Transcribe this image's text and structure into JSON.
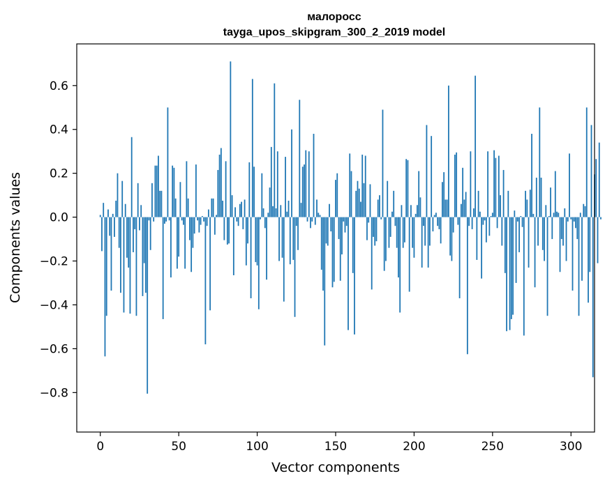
{
  "chart_data": {
    "type": "bar",
    "title": "малоросс",
    "subtitle": "tayga_upos_skipgram_300_2_2019 model",
    "xlabel": "Vector components",
    "ylabel": "Components values",
    "xlim": [
      -15,
      315
    ],
    "ylim": [
      -0.98,
      0.79
    ],
    "xticks": [
      0,
      50,
      100,
      150,
      200,
      250,
      300
    ],
    "yticks": [
      -0.8,
      -0.6,
      -0.4,
      -0.2,
      0.0,
      0.2,
      0.4,
      0.6
    ],
    "ytick_labels": [
      "−0.8",
      "−0.6",
      "−0.4",
      "−0.2",
      "0.0",
      "0.2",
      "0.4",
      "0.6"
    ],
    "grid": false,
    "bar_color": "#1f77b4",
    "values": [
      0.01,
      -0.155,
      0.065,
      -0.635,
      -0.45,
      0.035,
      -0.085,
      -0.335,
      0.015,
      -0.09,
      0.075,
      0.2,
      -0.14,
      -0.345,
      0.165,
      -0.435,
      0.06,
      -0.185,
      -0.23,
      -0.44,
      0.365,
      -0.16,
      -0.055,
      -0.45,
      0.155,
      -0.06,
      0.055,
      -0.36,
      -0.21,
      -0.345,
      -0.805,
      -0.015,
      -0.15,
      0.155,
      -0.02,
      0.235,
      0.235,
      0.28,
      0.12,
      0.12,
      -0.465,
      -0.03,
      -0.02,
      0.5,
      -0.015,
      -0.275,
      0.235,
      0.225,
      0.085,
      -0.235,
      -0.18,
      0.16,
      -0.015,
      -0.035,
      -0.235,
      0.255,
      0.085,
      -0.105,
      -0.25,
      -0.14,
      -0.075,
      0.24,
      -0.015,
      -0.07,
      -0.035,
      0.005,
      -0.02,
      -0.58,
      -0.04,
      0.035,
      -0.425,
      0.085,
      0.085,
      -0.08,
      0.01,
      0.215,
      0.285,
      0.315,
      0.075,
      -0.105,
      0.255,
      -0.125,
      -0.12,
      0.71,
      0.1,
      -0.265,
      0.045,
      -0.02,
      -0.04,
      0.06,
      0.07,
      -0.055,
      0.08,
      -0.22,
      -0.12,
      0.25,
      -0.37,
      0.63,
      0.23,
      -0.205,
      -0.22,
      -0.42,
      -0.01,
      0.2,
      0.04,
      -0.05,
      -0.285,
      0.02,
      0.135,
      0.32,
      0.05,
      0.61,
      0.04,
      0.3,
      -0.2,
      0.055,
      -0.185,
      -0.385,
      0.275,
      0.025,
      0.075,
      -0.215,
      0.4,
      -0.195,
      -0.455,
      -0.04,
      -0.15,
      0.535,
      0.065,
      0.23,
      0.24,
      0.305,
      -0.02,
      0.3,
      -0.05,
      -0.02,
      0.38,
      -0.035,
      0.08,
      0.02,
      0.01,
      -0.24,
      -0.335,
      -0.585,
      -0.12,
      -0.13,
      0.06,
      -0.065,
      -0.32,
      -0.295,
      0.17,
      0.2,
      -0.1,
      -0.29,
      -0.17,
      -0.02,
      -0.07,
      -0.04,
      -0.515,
      0.29,
      0.21,
      -0.255,
      -0.535,
      0.12,
      0.165,
      0.13,
      0.07,
      0.285,
      0.155,
      0.28,
      -0.105,
      -0.025,
      0.15,
      -0.33,
      -0.09,
      -0.13,
      -0.11,
      0.08,
      0.1,
      -0.01,
      0.49,
      -0.245,
      -0.2,
      0.165,
      -0.14,
      -0.09,
      0.025,
      0.12,
      -0.04,
      -0.14,
      -0.275,
      -0.435,
      0.055,
      -0.14,
      -0.115,
      0.265,
      0.26,
      -0.34,
      0.055,
      -0.14,
      -0.185,
      0.015,
      0.055,
      0.21,
      0.09,
      -0.23,
      -0.04,
      -0.13,
      0.42,
      -0.23,
      -0.13,
      0.37,
      -0.065,
      0.01,
      0.02,
      -0.04,
      -0.055,
      -0.12,
      0.16,
      0.205,
      0.08,
      0.08,
      0.6,
      -0.175,
      -0.2,
      -0.07,
      0.285,
      0.295,
      -0.035,
      -0.37,
      0.06,
      0.225,
      0.08,
      0.115,
      -0.625,
      -0.04,
      0.3,
      -0.055,
      0.04,
      0.645,
      -0.195,
      0.12,
      0.025,
      -0.28,
      -0.035,
      -0.015,
      -0.115,
      0.3,
      -0.085,
      0.005,
      0.02,
      0.305,
      0.27,
      -0.05,
      0.28,
      0.1,
      -0.13,
      0.215,
      -0.255,
      -0.52,
      0.12,
      -0.515,
      -0.465,
      -0.445,
      0.03,
      -0.3,
      -0.02,
      -0.16,
      0.005,
      -0.045,
      -0.54,
      0.12,
      0.08,
      -0.23,
      0.125,
      0.38,
      0.015,
      -0.32,
      0.18,
      -0.13,
      0.5,
      0.18,
      -0.15,
      -0.2,
      0.055,
      -0.45,
      0.005,
      0.135,
      -0.1,
      0.02,
      0.21,
      0.025,
      0.02,
      -0.25,
      -0.1,
      -0.13,
      0.04,
      -0.2,
      -0.02,
      0.29,
      -0.01,
      -0.335,
      -0.02,
      -0.05,
      -0.1,
      -0.45,
      0.02,
      -0.29,
      0.06,
      0.05,
      0.5,
      -0.39,
      -0.25,
      0.42,
      -0.73,
      0.195,
      0.265,
      -0.21,
      0.34,
      -0.01
    ]
  }
}
